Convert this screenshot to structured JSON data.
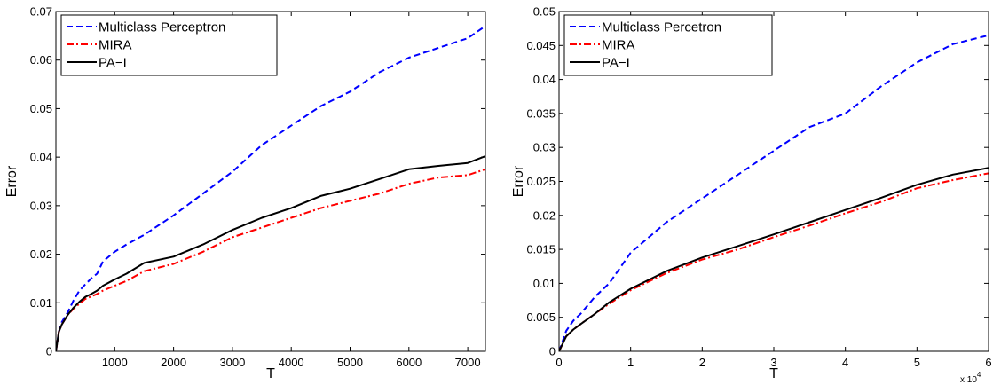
{
  "chart_data": [
    {
      "type": "line",
      "xlabel": "T",
      "ylabel": "Error",
      "xlim": [
        0,
        7300
      ],
      "ylim": [
        0,
        0.07
      ],
      "xticks": [
        1000,
        2000,
        3000,
        4000,
        5000,
        6000,
        7000
      ],
      "xtick_labels": [
        "1000",
        "2000",
        "3000",
        "4000",
        "5000",
        "6000",
        "7000"
      ],
      "yticks": [
        0,
        0.01,
        0.02,
        0.03,
        0.04,
        0.05,
        0.06,
        0.07
      ],
      "ytick_labels": [
        "0",
        "0.01",
        "0.02",
        "0.03",
        "0.04",
        "0.05",
        "0.06",
        "0.07"
      ],
      "x_multiplier_label": "",
      "legend": "top-left",
      "grid": false,
      "series": [
        {
          "name": "Multiclass Perceptron",
          "color": "#0000ff",
          "style": "dashed",
          "x": [
            0,
            50,
            100,
            200,
            300,
            400,
            500,
            600,
            700,
            800,
            1000,
            1200,
            1500,
            2000,
            2500,
            3000,
            3500,
            4000,
            4500,
            5000,
            5500,
            6000,
            6500,
            7000,
            7300
          ],
          "y": [
            0,
            0.004,
            0.006,
            0.008,
            0.0105,
            0.0125,
            0.0138,
            0.015,
            0.016,
            0.0185,
            0.0205,
            0.022,
            0.024,
            0.028,
            0.0325,
            0.037,
            0.0425,
            0.0465,
            0.0505,
            0.0535,
            0.0575,
            0.0605,
            0.0625,
            0.0645,
            0.067
          ]
        },
        {
          "name": "MIRA",
          "color": "#ff0000",
          "style": "dashdot",
          "x": [
            0,
            50,
            100,
            200,
            300,
            400,
            500,
            600,
            700,
            800,
            1000,
            1200,
            1500,
            2000,
            2500,
            3000,
            3500,
            4000,
            4500,
            5000,
            5500,
            6000,
            6500,
            7000,
            7300
          ],
          "y": [
            0,
            0.004,
            0.0055,
            0.0075,
            0.0088,
            0.0098,
            0.0108,
            0.0113,
            0.0118,
            0.0125,
            0.0135,
            0.0145,
            0.0165,
            0.018,
            0.0205,
            0.0235,
            0.0255,
            0.0275,
            0.0295,
            0.031,
            0.0325,
            0.0345,
            0.0358,
            0.0363,
            0.0375
          ]
        },
        {
          "name": "PA−I",
          "color": "#000000",
          "style": "solid",
          "x": [
            0,
            50,
            100,
            200,
            300,
            400,
            500,
            600,
            700,
            800,
            1000,
            1200,
            1500,
            2000,
            2500,
            3000,
            3500,
            4000,
            4500,
            5000,
            5500,
            6000,
            6500,
            7000,
            7300
          ],
          "y": [
            0,
            0.004,
            0.0055,
            0.0075,
            0.009,
            0.0102,
            0.0112,
            0.0118,
            0.0125,
            0.0135,
            0.0148,
            0.016,
            0.0182,
            0.0195,
            0.022,
            0.025,
            0.0275,
            0.0295,
            0.032,
            0.0335,
            0.0355,
            0.0375,
            0.0382,
            0.0388,
            0.0402
          ]
        }
      ]
    },
    {
      "type": "line",
      "xlabel": "T",
      "ylabel": "Error",
      "xlim": [
        0,
        6
      ],
      "ylim": [
        0,
        0.05
      ],
      "xticks": [
        0,
        1,
        2,
        3,
        4,
        5,
        6
      ],
      "xtick_labels": [
        "0",
        "1",
        "2",
        "3",
        "4",
        "5",
        "6"
      ],
      "yticks": [
        0,
        0.005,
        0.01,
        0.015,
        0.02,
        0.025,
        0.03,
        0.035,
        0.04,
        0.045,
        0.05
      ],
      "ytick_labels": [
        "0",
        "0.005",
        "0.01",
        "0.015",
        "0.02",
        "0.025",
        "0.03",
        "0.035",
        "0.04",
        "0.045",
        "0.05"
      ],
      "x_multiplier_label": "x 10",
      "x_multiplier_exponent": "4",
      "legend": "top-left",
      "grid": false,
      "series": [
        {
          "name": "Multiclass Percetron",
          "color": "#0000ff",
          "style": "dashed",
          "x": [
            0,
            0.1,
            0.2,
            0.3,
            0.5,
            0.7,
            1.0,
            1.5,
            2.0,
            2.5,
            3.0,
            3.5,
            4.0,
            4.5,
            5.0,
            5.5,
            6.0
          ],
          "y": [
            0,
            0.003,
            0.0045,
            0.0055,
            0.008,
            0.01,
            0.0145,
            0.019,
            0.0225,
            0.026,
            0.0295,
            0.033,
            0.035,
            0.039,
            0.0425,
            0.0452,
            0.0465
          ]
        },
        {
          "name": "MIRA",
          "color": "#ff0000",
          "style": "dashdot",
          "x": [
            0,
            0.1,
            0.2,
            0.3,
            0.5,
            0.7,
            1.0,
            1.5,
            2.0,
            2.5,
            3.0,
            3.5,
            4.0,
            4.5,
            5.0,
            5.5,
            6.0
          ],
          "y": [
            0,
            0.0022,
            0.0032,
            0.004,
            0.0055,
            0.007,
            0.009,
            0.0115,
            0.0135,
            0.015,
            0.0168,
            0.0185,
            0.0203,
            0.022,
            0.024,
            0.0252,
            0.0262
          ]
        },
        {
          "name": "PA−I",
          "color": "#000000",
          "style": "solid",
          "x": [
            0,
            0.1,
            0.2,
            0.3,
            0.5,
            0.7,
            1.0,
            1.5,
            2.0,
            2.5,
            3.0,
            3.5,
            4.0,
            4.5,
            5.0,
            5.5,
            6.0
          ],
          "y": [
            0,
            0.0022,
            0.0032,
            0.004,
            0.0055,
            0.0072,
            0.0092,
            0.0118,
            0.0138,
            0.0155,
            0.0172,
            0.019,
            0.0208,
            0.0226,
            0.0245,
            0.026,
            0.027
          ]
        }
      ]
    }
  ]
}
